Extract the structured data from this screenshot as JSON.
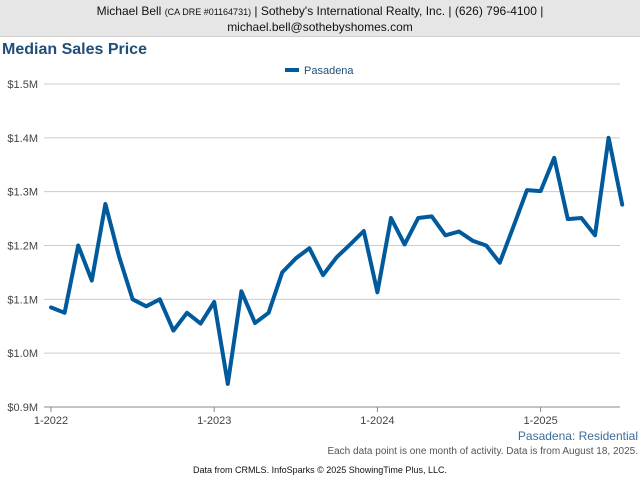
{
  "header": {
    "agent_name": "Michael Bell",
    "license": "(CA DRE #01164731)",
    "company_phone": "| Sotheby's International Realty, Inc. | (626) 796-4100 |",
    "email": "michael.bell@sothebyshomes.com"
  },
  "footer": {
    "area_label": "Pasadena: Residential",
    "note": "Each data point is one month of activity. Data is from August 18, 2025.",
    "credits": "Data from CRMLS. InfoSparks © 2025 ShowingTime Plus, LLC."
  },
  "colors": {
    "series": "#005a9c",
    "title": "#1f4e79",
    "grid": "#cccccc",
    "axis": "#888888"
  },
  "chart_data": {
    "type": "line",
    "title": "Median Sales Price",
    "legend_position": "top-center",
    "grid": true,
    "ylim": [
      900000,
      1500000
    ],
    "y_ticks": [
      {
        "value": 900000,
        "label": "$0.9M"
      },
      {
        "value": 1000000,
        "label": "$1.0M"
      },
      {
        "value": 1100000,
        "label": "$1.1M"
      },
      {
        "value": 1200000,
        "label": "$1.2M"
      },
      {
        "value": 1300000,
        "label": "$1.3M"
      },
      {
        "value": 1400000,
        "label": "$1.4M"
      },
      {
        "value": 1500000,
        "label": "$1.5M"
      }
    ],
    "x_ticks": [
      {
        "value": "2022-01",
        "label": "1-2022"
      },
      {
        "value": "2023-01",
        "label": "1-2023"
      },
      {
        "value": "2024-01",
        "label": "1-2024"
      },
      {
        "value": "2025-01",
        "label": "1-2025"
      }
    ],
    "x": [
      "2022-01",
      "2022-02",
      "2022-03",
      "2022-04",
      "2022-05",
      "2022-06",
      "2022-07",
      "2022-08",
      "2022-09",
      "2022-10",
      "2022-11",
      "2022-12",
      "2023-01",
      "2023-02",
      "2023-03",
      "2023-04",
      "2023-05",
      "2023-06",
      "2023-07",
      "2023-08",
      "2023-09",
      "2023-10",
      "2023-11",
      "2023-12",
      "2024-01",
      "2024-02",
      "2024-03",
      "2024-04",
      "2024-05",
      "2024-06",
      "2024-07",
      "2024-08",
      "2024-09",
      "2024-10",
      "2024-11",
      "2024-12",
      "2025-01",
      "2025-02",
      "2025-03",
      "2025-04",
      "2025-05",
      "2025-06",
      "2025-07"
    ],
    "series": [
      {
        "name": "Pasadena",
        "values": [
          1085000,
          1075000,
          1200000,
          1135000,
          1277000,
          1180000,
          1100000,
          1087000,
          1100000,
          1042000,
          1075000,
          1055000,
          1095000,
          943000,
          1115000,
          1056000,
          1075000,
          1150000,
          1176000,
          1195000,
          1145000,
          1178000,
          1202000,
          1227000,
          1113000,
          1251000,
          1202000,
          1251000,
          1254000,
          1219000,
          1226000,
          1209000,
          1200000,
          1168000,
          1235000,
          1303000,
          1301000,
          1363000,
          1249000,
          1251000,
          1219000,
          1400000,
          1276000
        ]
      }
    ]
  }
}
